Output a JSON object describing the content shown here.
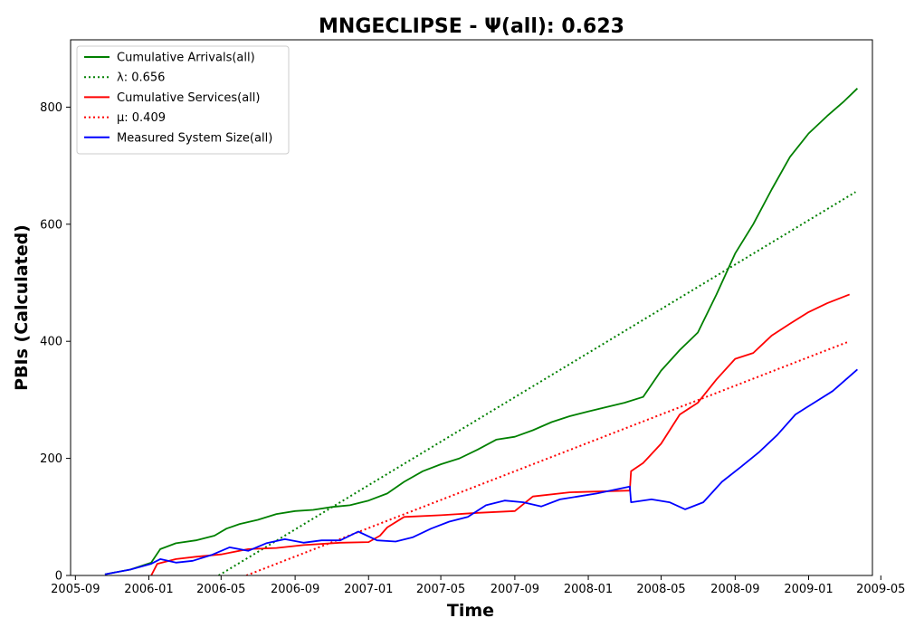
{
  "chart_data": {
    "type": "line",
    "title": "MNGECLIPSE -  Ψ(all): 0.623",
    "xlabel": "Time",
    "ylabel": "PBIs (Calculated)",
    "xlim": [
      "2005-08-24",
      "2009-04-17"
    ],
    "ylim": [
      0,
      915
    ],
    "xticks": [
      "2005-09",
      "2006-01",
      "2006-05",
      "2006-09",
      "2007-01",
      "2007-05",
      "2007-09",
      "2008-01",
      "2008-05",
      "2008-09",
      "2009-01",
      "2009-05"
    ],
    "yticks": [
      0,
      200,
      400,
      600,
      800
    ],
    "grid": false,
    "legend_position": "top-left",
    "series": [
      {
        "name": "Cumulative Arrivals(all)",
        "color": "#008000",
        "style": "solid",
        "points": [
          [
            "2005-10-20",
            2
          ],
          [
            "2005-12-01",
            10
          ],
          [
            "2006-01-05",
            22
          ],
          [
            "2006-01-20",
            45
          ],
          [
            "2006-02-15",
            55
          ],
          [
            "2006-03-20",
            60
          ],
          [
            "2006-04-20",
            68
          ],
          [
            "2006-05-10",
            80
          ],
          [
            "2006-06-01",
            88
          ],
          [
            "2006-07-01",
            95
          ],
          [
            "2006-08-01",
            105
          ],
          [
            "2006-09-01",
            110
          ],
          [
            "2006-10-01",
            112
          ],
          [
            "2006-11-01",
            117
          ],
          [
            "2006-12-01",
            120
          ],
          [
            "2007-01-01",
            128
          ],
          [
            "2007-02-01",
            140
          ],
          [
            "2007-03-01",
            160
          ],
          [
            "2007-04-01",
            178
          ],
          [
            "2007-05-01",
            190
          ],
          [
            "2007-06-01",
            200
          ],
          [
            "2007-07-01",
            215
          ],
          [
            "2007-08-01",
            232
          ],
          [
            "2007-09-01",
            237
          ],
          [
            "2007-10-01",
            248
          ],
          [
            "2007-11-01",
            262
          ],
          [
            "2007-12-01",
            272
          ],
          [
            "2008-01-01",
            280
          ],
          [
            "2008-02-01",
            288
          ],
          [
            "2008-03-01",
            295
          ],
          [
            "2008-04-01",
            305
          ],
          [
            "2008-05-01",
            350
          ],
          [
            "2008-06-01",
            385
          ],
          [
            "2008-07-01",
            415
          ],
          [
            "2008-08-01",
            480
          ],
          [
            "2008-09-01",
            550
          ],
          [
            "2008-10-01",
            600
          ],
          [
            "2008-11-01",
            660
          ],
          [
            "2008-12-01",
            715
          ],
          [
            "2009-01-01",
            755
          ],
          [
            "2009-02-01",
            785
          ],
          [
            "2009-03-01",
            810
          ],
          [
            "2009-03-23",
            832
          ]
        ]
      },
      {
        "name": "λ: 0.656",
        "color": "#008000",
        "style": "dotted",
        "points": [
          [
            "2006-04-27",
            0
          ],
          [
            "2009-03-20",
            655
          ]
        ]
      },
      {
        "name": "Cumulative Services(all)",
        "color": "#ff0000",
        "style": "solid",
        "points": [
          [
            "2006-01-05",
            0
          ],
          [
            "2006-01-15",
            20
          ],
          [
            "2006-02-15",
            28
          ],
          [
            "2006-03-20",
            32
          ],
          [
            "2006-05-01",
            36
          ],
          [
            "2006-06-15",
            45
          ],
          [
            "2006-08-01",
            47
          ],
          [
            "2006-09-15",
            52
          ],
          [
            "2006-11-15",
            56
          ],
          [
            "2007-01-01",
            57
          ],
          [
            "2007-01-20",
            68
          ],
          [
            "2007-02-01",
            82
          ],
          [
            "2007-03-01",
            100
          ],
          [
            "2007-05-01",
            103
          ],
          [
            "2007-07-01",
            107
          ],
          [
            "2007-09-01",
            110
          ],
          [
            "2007-10-01",
            135
          ],
          [
            "2007-12-01",
            142
          ],
          [
            "2008-03-10",
            145
          ],
          [
            "2008-03-12",
            178
          ],
          [
            "2008-04-01",
            192
          ],
          [
            "2008-05-01",
            225
          ],
          [
            "2008-06-01",
            275
          ],
          [
            "2008-07-01",
            295
          ],
          [
            "2008-08-01",
            335
          ],
          [
            "2008-09-01",
            370
          ],
          [
            "2008-10-01",
            380
          ],
          [
            "2008-11-01",
            410
          ],
          [
            "2008-12-01",
            430
          ],
          [
            "2009-01-01",
            450
          ],
          [
            "2009-02-01",
            465
          ],
          [
            "2009-03-10",
            480
          ]
        ]
      },
      {
        "name": "μ: 0.409",
        "color": "#ff0000",
        "style": "dotted",
        "points": [
          [
            "2006-06-12",
            0
          ],
          [
            "2009-03-10",
            400
          ]
        ]
      },
      {
        "name": "Measured System Size(all)",
        "color": "#0000ff",
        "style": "solid",
        "points": [
          [
            "2005-10-20",
            2
          ],
          [
            "2005-12-01",
            10
          ],
          [
            "2006-01-05",
            20
          ],
          [
            "2006-01-20",
            28
          ],
          [
            "2006-02-15",
            22
          ],
          [
            "2006-03-15",
            25
          ],
          [
            "2006-04-15",
            35
          ],
          [
            "2006-05-15",
            48
          ],
          [
            "2006-06-15",
            42
          ],
          [
            "2006-07-15",
            55
          ],
          [
            "2006-08-15",
            62
          ],
          [
            "2006-09-15",
            56
          ],
          [
            "2006-10-15",
            60
          ],
          [
            "2006-11-15",
            60
          ],
          [
            "2006-12-15",
            75
          ],
          [
            "2007-01-15",
            60
          ],
          [
            "2007-02-15",
            58
          ],
          [
            "2007-03-15",
            65
          ],
          [
            "2007-04-15",
            80
          ],
          [
            "2007-05-15",
            92
          ],
          [
            "2007-06-15",
            100
          ],
          [
            "2007-07-15",
            120
          ],
          [
            "2007-08-15",
            128
          ],
          [
            "2007-09-15",
            125
          ],
          [
            "2007-10-15",
            118
          ],
          [
            "2007-11-15",
            130
          ],
          [
            "2007-12-15",
            135
          ],
          [
            "2008-01-15",
            140
          ],
          [
            "2008-03-10",
            152
          ],
          [
            "2008-03-12",
            125
          ],
          [
            "2008-04-15",
            130
          ],
          [
            "2008-05-15",
            125
          ],
          [
            "2008-06-10",
            113
          ],
          [
            "2008-07-10",
            125
          ],
          [
            "2008-08-10",
            160
          ],
          [
            "2008-09-10",
            185
          ],
          [
            "2008-10-10",
            210
          ],
          [
            "2008-11-10",
            240
          ],
          [
            "2008-12-10",
            275
          ],
          [
            "2009-01-10",
            295
          ],
          [
            "2009-02-10",
            315
          ],
          [
            "2009-03-23",
            352
          ]
        ]
      }
    ]
  }
}
